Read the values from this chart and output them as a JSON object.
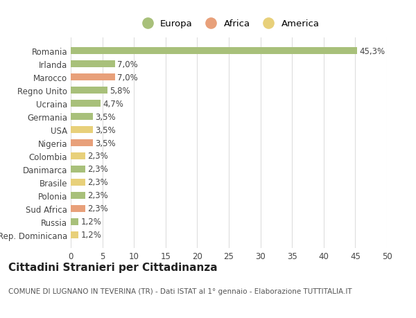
{
  "countries": [
    "Romania",
    "Irlanda",
    "Marocco",
    "Regno Unito",
    "Ucraina",
    "Germania",
    "USA",
    "Nigeria",
    "Colombia",
    "Danimarca",
    "Brasile",
    "Polonia",
    "Sud Africa",
    "Russia",
    "Rep. Dominicana"
  ],
  "values": [
    45.3,
    7.0,
    7.0,
    5.8,
    4.7,
    3.5,
    3.5,
    3.5,
    2.3,
    2.3,
    2.3,
    2.3,
    2.3,
    1.2,
    1.2
  ],
  "labels": [
    "45,3%",
    "7,0%",
    "7,0%",
    "5,8%",
    "4,7%",
    "3,5%",
    "3,5%",
    "3,5%",
    "2,3%",
    "2,3%",
    "2,3%",
    "2,3%",
    "2,3%",
    "1,2%",
    "1,2%"
  ],
  "continents": [
    "Europa",
    "Europa",
    "Africa",
    "Europa",
    "Europa",
    "Europa",
    "America",
    "Africa",
    "America",
    "Europa",
    "America",
    "Europa",
    "Africa",
    "Europa",
    "America"
  ],
  "colors": {
    "Europa": "#a8c07a",
    "Africa": "#e8a07a",
    "America": "#e8d07a"
  },
  "legend_order": [
    "Europa",
    "Africa",
    "America"
  ],
  "title": "Cittadini Stranieri per Cittadinanza",
  "subtitle": "COMUNE DI LUGNANO IN TEVERINA (TR) - Dati ISTAT al 1° gennaio - Elaborazione TUTTITALIA.IT",
  "xlim": [
    0,
    50
  ],
  "xticks": [
    0,
    5,
    10,
    15,
    20,
    25,
    30,
    35,
    40,
    45,
    50
  ],
  "background_color": "#ffffff",
  "grid_color": "#dddddd",
  "bar_height": 0.55,
  "title_fontsize": 11,
  "subtitle_fontsize": 7.5,
  "tick_fontsize": 8.5,
  "label_fontsize": 8.5,
  "legend_fontsize": 9.5
}
